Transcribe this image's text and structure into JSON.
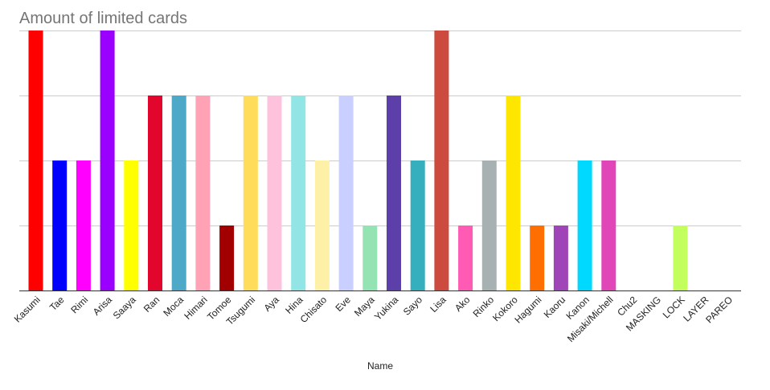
{
  "chart_data": {
    "type": "bar",
    "title": "Amount of limited cards",
    "xlabel": "Name",
    "ylabel": "",
    "ylim": [
      0,
      4
    ],
    "grid": true,
    "y_tick_labels_visible": false,
    "categories": [
      "Kasumi",
      "Tae",
      "Rimi",
      "Arisa",
      "Saaya",
      "Ran",
      "Moca",
      "Himari",
      "Tomoe",
      "Tsugumi",
      "Aya",
      "Hina",
      "Chisato",
      "Eve",
      "Maya",
      "Yukina",
      "Sayo",
      "Lisa",
      "Ako",
      "Rinko",
      "Kokoro",
      "Hagumi",
      "Kaoru",
      "Kanon",
      "Misaki/Michell",
      "Chu2",
      "MASKING",
      "LOCK",
      "LAYER",
      "PAREO"
    ],
    "values": [
      4,
      2,
      2,
      4,
      2,
      3,
      3,
      3,
      1,
      3,
      3,
      3,
      2,
      3,
      1,
      3,
      2,
      4,
      1,
      2,
      3,
      1,
      1,
      2,
      2,
      0,
      0,
      1,
      0,
      0
    ],
    "colors": [
      "#ff0000",
      "#0000ff",
      "#ff00ff",
      "#9900ff",
      "#ffff00",
      "#e2062c",
      "#4ea8c8",
      "#ffa2b5",
      "#a20000",
      "#ffdc59",
      "#ffc2dc",
      "#92e5e5",
      "#fff0a8",
      "#c9cfff",
      "#94e3b2",
      "#5c3fa8",
      "#35aebd",
      "#cc4b3e",
      "#ff5bb5",
      "#a8b1b1",
      "#ffe600",
      "#ff6e00",
      "#9f45b8",
      "#00d9ff",
      "#e046b8",
      "#000000",
      "#000000",
      "#c2ff5c",
      "#000000",
      "#000000"
    ]
  }
}
